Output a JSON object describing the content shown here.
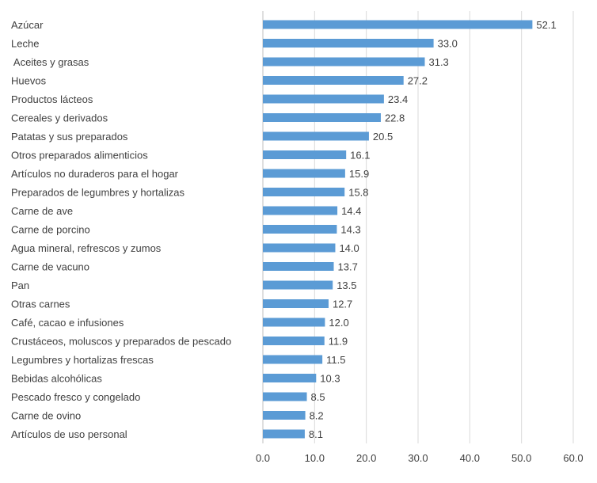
{
  "chart_data": {
    "type": "bar",
    "orientation": "horizontal",
    "categories": [
      "Azúcar",
      "Leche",
      " Aceites y grasas",
      "Huevos",
      "Productos lácteos",
      "Cereales y derivados",
      "Patatas y sus preparados",
      "Otros preparados alimenticios",
      "Artículos no duraderos para el hogar",
      "Preparados de legumbres y hortalizas",
      "Carne de ave",
      "Carne de porcino",
      "Agua mineral, refrescos y zumos",
      "Carne de vacuno",
      "Pan",
      "Otras carnes",
      "Café, cacao e infusiones",
      "Crustáceos, moluscos y preparados de pescado",
      "Legumbres y hortalizas frescas",
      "Bebidas alcohólicas",
      "Pescado fresco y congelado",
      "Carne de ovino",
      "Artículos de uso personal"
    ],
    "values": [
      52.1,
      33.0,
      31.3,
      27.2,
      23.4,
      22.8,
      20.5,
      16.1,
      15.9,
      15.8,
      14.4,
      14.3,
      14.0,
      13.7,
      13.5,
      12.7,
      12.0,
      11.9,
      11.5,
      10.3,
      8.5,
      8.2,
      8.1
    ],
    "value_labels": [
      "52.1",
      "33.0",
      "31.3",
      "27.2",
      "23.4",
      "22.8",
      "20.5",
      "16.1",
      "15.9",
      "15.8",
      "14.4",
      "14.3",
      "14.0",
      "13.7",
      "13.5",
      "12.7",
      "12.0",
      "11.9",
      "11.5",
      "10.3",
      "8.5",
      "8.2",
      "8.1"
    ],
    "xticks": [
      "0.0",
      "10.0",
      "20.0",
      "30.0",
      "40.0",
      "50.0",
      "60.0"
    ],
    "xlim": [
      0,
      60
    ],
    "grid": true,
    "bar_color": "#5b9bd5"
  }
}
